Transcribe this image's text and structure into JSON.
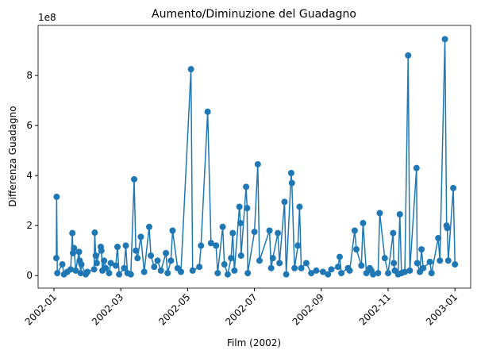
{
  "chart_data": {
    "type": "line",
    "title": "Aumento/Diminuzione del Guadagno",
    "xlabel": "Film (2002)",
    "ylabel": "Differenza Guadagno",
    "y_offset_label": "1e8",
    "color": "#1f77b4",
    "x": [
      1.07,
      1.08,
      1.1,
      1.25,
      1.3,
      1.4,
      1.5,
      1.55,
      1.57,
      1.6,
      1.65,
      1.75,
      1.77,
      1.8,
      1.82,
      1.95,
      2.0,
      2.2,
      2.22,
      2.25,
      2.28,
      2.4,
      2.42,
      2.45,
      2.5,
      2.55,
      2.65,
      2.7,
      2.85,
      2.9,
      2.95,
      3.1,
      3.15,
      3.2,
      3.3,
      3.4,
      3.45,
      3.5,
      3.6,
      3.7,
      3.85,
      3.9,
      4.0,
      4.1,
      4.2,
      4.35,
      4.4,
      4.5,
      4.55,
      4.7,
      4.8,
      5.1,
      5.15,
      5.35,
      5.4,
      5.6,
      5.7,
      5.85,
      5.9,
      6.05,
      6.1,
      6.2,
      6.3,
      6.35,
      6.4,
      6.55,
      6.58,
      6.6,
      6.75,
      6.78,
      6.8,
      7.0,
      7.1,
      7.15,
      7.45,
      7.5,
      7.55,
      7.7,
      7.75,
      7.9,
      7.95,
      8.1,
      8.12,
      8.2,
      8.3,
      8.35,
      8.4,
      8.55,
      8.7,
      8.85,
      9.05,
      9.2,
      9.3,
      9.5,
      9.55,
      9.6,
      9.8,
      9.85,
      10.0,
      10.05,
      10.2,
      10.25,
      10.35,
      10.45,
      10.5,
      10.55,
      10.7,
      10.75,
      10.9,
      11.0,
      11.15,
      11.17,
      11.2,
      11.3,
      11.35,
      11.4,
      11.5,
      11.6,
      11.65,
      11.85,
      11.87,
      11.95,
      12.0,
      12.05,
      12.25,
      12.3,
      12.5,
      12.55,
      12.7,
      12.75,
      12.77,
      12.8,
      12.95,
      13.0
    ],
    "values": [
      0.7,
      3.15,
      0.1,
      0.45,
      0.05,
      0.15,
      0.25,
      1.7,
      0.9,
      1.1,
      0.2,
      0.95,
      0.6,
      0.1,
      0.45,
      0.05,
      0.15,
      0.25,
      1.72,
      0.8,
      0.5,
      1.15,
      1.0,
      0.2,
      0.6,
      0.3,
      0.1,
      0.5,
      0.4,
      1.15,
      0.05,
      0.3,
      1.2,
      0.1,
      0.05,
      3.85,
      1.0,
      0.7,
      1.55,
      0.15,
      1.95,
      0.8,
      0.35,
      0.6,
      0.2,
      0.9,
      0.1,
      0.6,
      1.8,
      0.3,
      0.15,
      8.25,
      0.2,
      0.35,
      1.2,
      6.55,
      1.3,
      1.2,
      0.1,
      1.95,
      0.45,
      0.05,
      0.7,
      1.7,
      0.2,
      2.75,
      2.1,
      0.8,
      3.55,
      2.7,
      0.1,
      1.75,
      4.45,
      0.6,
      1.8,
      0.3,
      0.7,
      1.7,
      0.5,
      2.95,
      0.05,
      4.1,
      3.7,
      0.3,
      1.2,
      2.75,
      0.3,
      0.5,
      0.1,
      0.2,
      0.15,
      0.05,
      0.25,
      0.35,
      0.75,
      0.1,
      0.3,
      0.2,
      1.8,
      1.05,
      0.4,
      2.1,
      0.1,
      0.3,
      0.2,
      0.05,
      0.1,
      2.5,
      0.7,
      0.1,
      1.7,
      0.5,
      0.2,
      0.05,
      2.45,
      0.1,
      0.15,
      8.8,
      0.2,
      4.3,
      0.5,
      0.15,
      1.05,
      0.3,
      0.55,
      0.1,
      1.5,
      0.6,
      9.45,
      2.0,
      1.9,
      0.6,
      3.5,
      0.45
    ],
    "xlim": [
      0.525,
      13.47
    ],
    "ylim": [
      -0.5,
      10
    ],
    "xticks": [
      {
        "value": 1,
        "label": "2002-01"
      },
      {
        "value": 3,
        "label": "2002-03"
      },
      {
        "value": 5,
        "label": "2002-05"
      },
      {
        "value": 7,
        "label": "2002-07"
      },
      {
        "value": 9,
        "label": "2002-09"
      },
      {
        "value": 11,
        "label": "2002-11"
      },
      {
        "value": 13,
        "label": "2003-01"
      }
    ],
    "yticks": [
      0,
      2,
      4,
      6,
      8
    ]
  }
}
